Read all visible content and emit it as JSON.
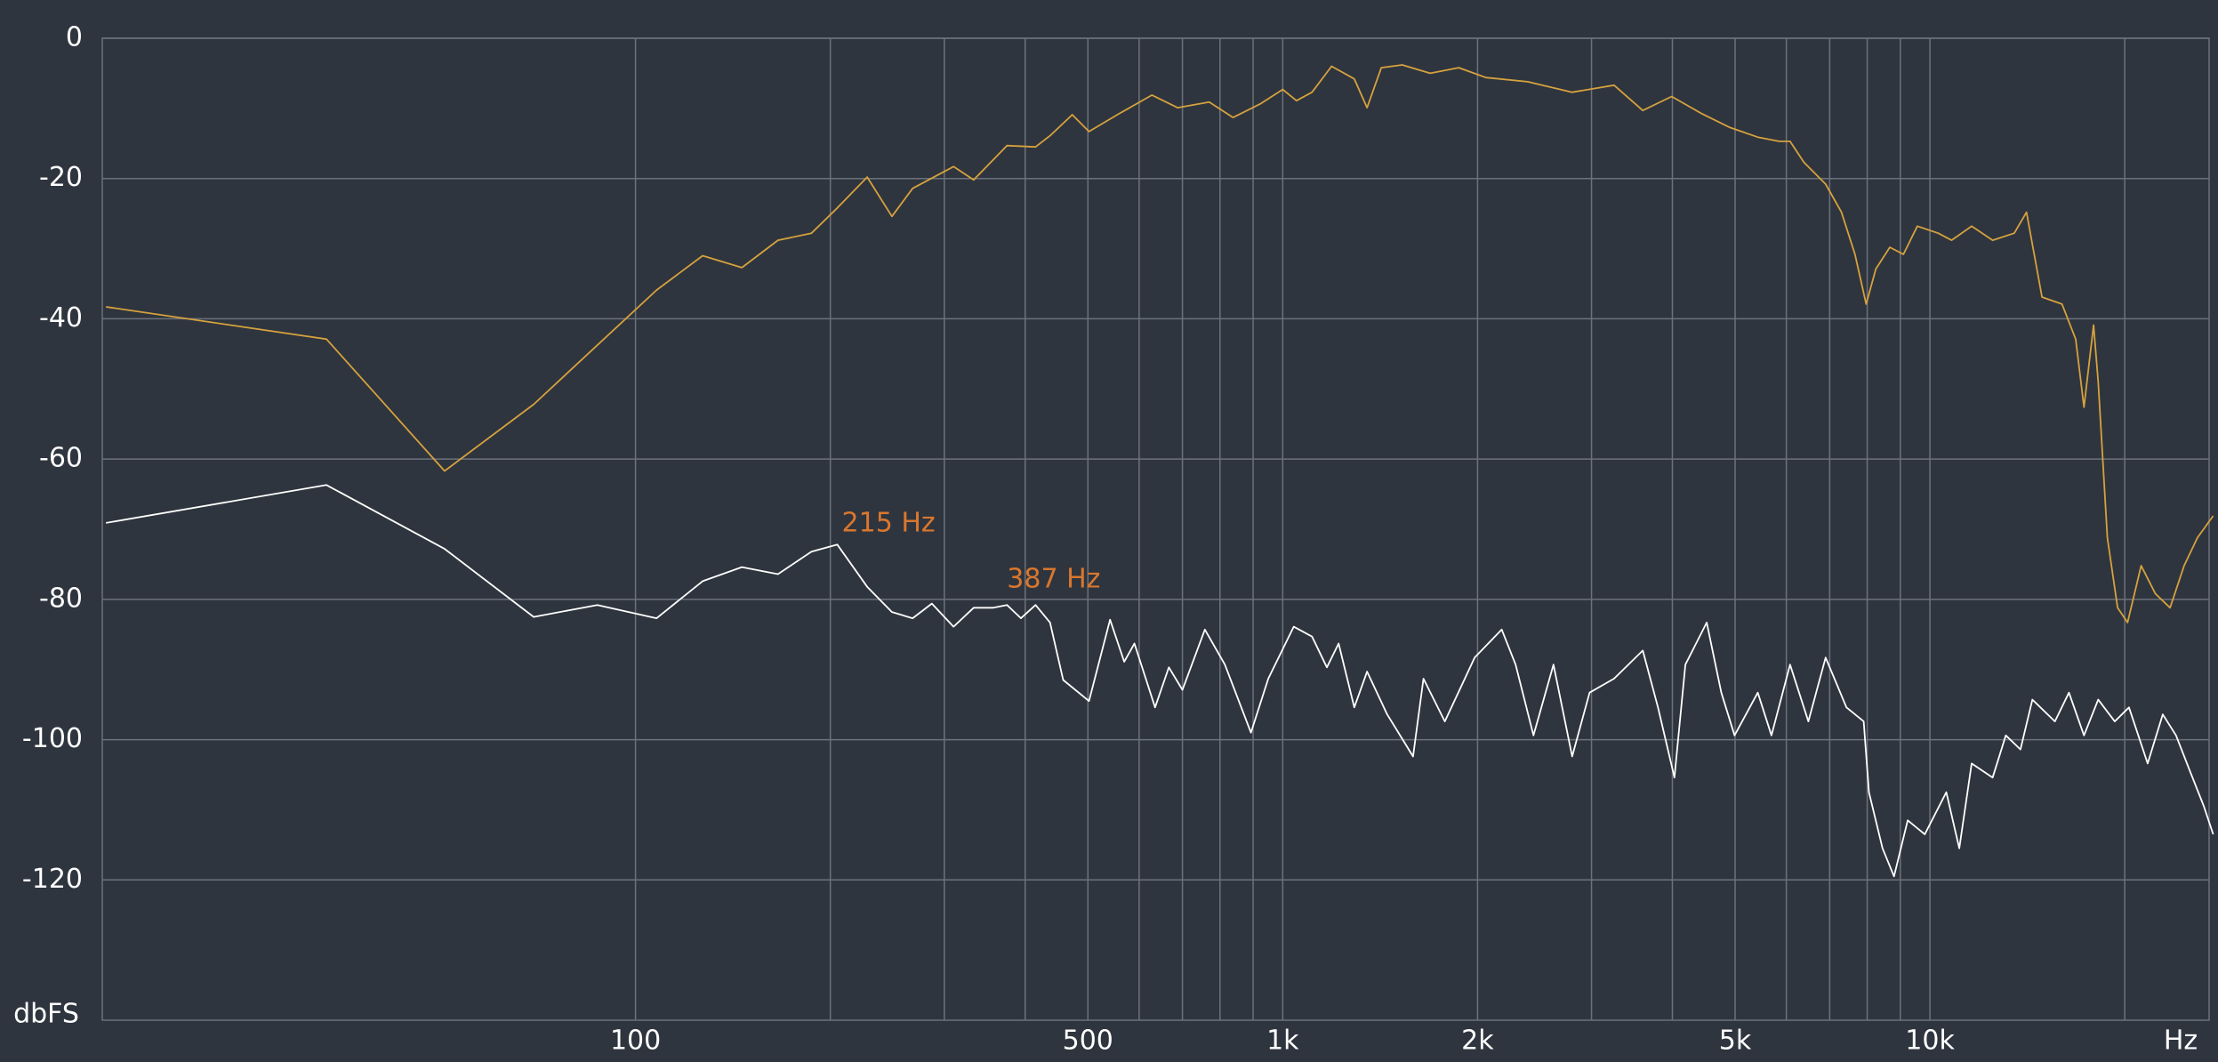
{
  "chart_data": {
    "type": "line",
    "xscale": "log",
    "xlim": [
      15,
      27000
    ],
    "ylim": [
      -140,
      0
    ],
    "xticks": [
      100,
      500,
      {
        "value": 1000,
        "label": "1k"
      },
      {
        "value": 2000,
        "label": "2k"
      },
      {
        "value": 5000,
        "label": "5k"
      },
      {
        "value": 10000,
        "label": "10k"
      }
    ],
    "x_minor_grid": [
      200,
      300,
      400,
      600,
      700,
      800,
      900,
      3000,
      4000,
      6000,
      7000,
      8000,
      9000,
      20000
    ],
    "yticks": [
      0,
      -20,
      -40,
      -60,
      -80,
      -100,
      -120
    ],
    "x_label": "Hz",
    "y_label": "dbFS",
    "grid": true,
    "series": [
      {
        "color": "#d6a23e",
        "x": [
          15.2,
          33.3,
          50.7,
          69.6,
          107.8,
          127,
          146,
          166,
          187,
          205,
          228,
          249,
          268,
          310,
          333,
          375,
          415,
          437,
          473,
          502,
          560,
          628,
          688,
          770,
          838,
          926,
          1000,
          1050,
          1110,
          1190,
          1290,
          1350,
          1420,
          1530,
          1690,
          1870,
          2060,
          2390,
          2800,
          3250,
          3600,
          3990,
          4430,
          4900,
          5420,
          5850,
          6080,
          6390,
          6900,
          7300,
          7660,
          7970,
          8250,
          8670,
          9100,
          9560,
          10300,
          10800,
          11600,
          12500,
          13500,
          14100,
          14900,
          16000,
          16800,
          17300,
          17900,
          18200,
          18800,
          19500,
          20200,
          21200,
          22300,
          23500,
          24700,
          25900,
          27400
        ],
        "values": [
          -38.3,
          -42.9,
          -61.7,
          -52.2,
          -35.9,
          -31,
          -32.7,
          -28.8,
          -27.8,
          -24.2,
          -19.8,
          -25.4,
          -21.4,
          -18.3,
          -20.2,
          -15.3,
          -15.5,
          -13.9,
          -10.9,
          -13.3,
          -10.7,
          -8.1,
          -9.9,
          -9.1,
          -11.3,
          -9.3,
          -7.3,
          -8.9,
          -7.7,
          -4.0,
          -5.8,
          -9.9,
          -4.2,
          -3.8,
          -5.0,
          -4.2,
          -5.6,
          -6.2,
          -7.7,
          -6.7,
          -10.3,
          -8.3,
          -10.7,
          -12.7,
          -14.1,
          -14.7,
          -14.7,
          -17.7,
          -20.8,
          -24.8,
          -30.8,
          -37.9,
          -32.9,
          -29.8,
          -30.8,
          -26.8,
          -27.8,
          -28.8,
          -26.8,
          -28.8,
          -27.8,
          -24.8,
          -36.9,
          -37.9,
          -42.9,
          -52.6,
          -40.9,
          -49,
          -71.2,
          -81.2,
          -83.3,
          -75.2,
          -79.2,
          -81.2,
          -75.2,
          -71.2,
          -68.1
        ]
      },
      {
        "color": "#ffffff",
        "x": [
          15.2,
          33.3,
          50.7,
          69.6,
          87.3,
          107.8,
          127,
          146,
          166,
          187,
          205,
          228,
          249,
          268,
          287,
          310,
          333,
          357,
          375,
          394,
          415,
          437,
          458,
          502,
          541,
          569,
          590,
          635,
          667,
          700,
          758,
          814,
          893,
          950,
          1040,
          1110,
          1170,
          1220,
          1290,
          1350,
          1450,
          1590,
          1650,
          1780,
          1980,
          2180,
          2290,
          2440,
          2620,
          2800,
          2980,
          3250,
          3600,
          3800,
          4030,
          4190,
          4520,
          4760,
          4990,
          5420,
          5690,
          6080,
          6490,
          6900,
          7430,
          7900,
          8050,
          8450,
          8800,
          9240,
          9820,
          10600,
          11100,
          11600,
          12500,
          13100,
          13800,
          14400,
          15600,
          16400,
          17300,
          18200,
          19300,
          20300,
          21700,
          22900,
          24000,
          25200,
          26500,
          27400
        ],
        "values": [
          -69.1,
          -63.7,
          -72.8,
          -82.5,
          -80.8,
          -82.7,
          -77.4,
          -75.4,
          -76.4,
          -73.2,
          -72.2,
          -78.2,
          -81.8,
          -82.7,
          -80.6,
          -83.9,
          -81.2,
          -81.2,
          -80.8,
          -82.7,
          -80.8,
          -83.3,
          -91.5,
          -94.5,
          -82.9,
          -88.9,
          -86.3,
          -95.4,
          -89.7,
          -92.9,
          -84.3,
          -89.3,
          -99,
          -91.3,
          -83.9,
          -85.3,
          -89.7,
          -86.3,
          -95.4,
          -90.3,
          -96.4,
          -102.4,
          -91.3,
          -97.4,
          -88.3,
          -84.3,
          -89.3,
          -99.4,
          -89.3,
          -102.4,
          -93.3,
          -91.3,
          -87.3,
          -95.4,
          -105.4,
          -89.3,
          -83.3,
          -93.3,
          -99.4,
          -93.3,
          -99.4,
          -89.3,
          -97.4,
          -88.3,
          -95.4,
          -97.4,
          -107.5,
          -115.5,
          -119.5,
          -111.5,
          -113.5,
          -107.5,
          -115.5,
          -103.4,
          -105.4,
          -99.4,
          -101.4,
          -94.3,
          -97.4,
          -93.3,
          -99.4,
          -94.3,
          -97.4,
          -95.4,
          -103.4,
          -96.4,
          -99.4,
          -104.4,
          -109.5,
          -113.5
        ]
      }
    ],
    "annotations": [
      {
        "text": "215 Hz",
        "x": 215,
        "y": -72,
        "color": "#d9772e"
      },
      {
        "text": "387 Hz",
        "x": 387,
        "y": -80,
        "color": "#d9772e"
      }
    ]
  }
}
